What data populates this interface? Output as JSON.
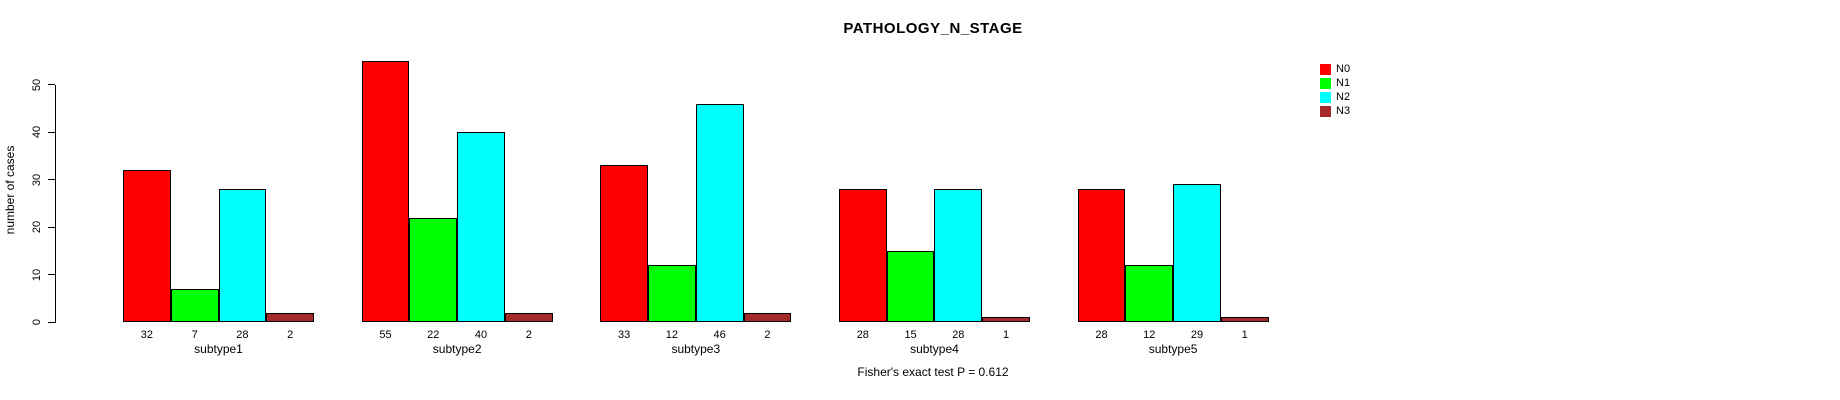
{
  "chart_data": {
    "type": "bar",
    "title": "PATHOLOGY_N_STAGE",
    "xlabel": "",
    "ylabel": "number of cases",
    "annotation": "Fisher's exact test P = 0.612",
    "categories": [
      "subtype1",
      "subtype2",
      "subtype3",
      "subtype4",
      "subtype5"
    ],
    "series": [
      {
        "name": "N0",
        "color": "#ff0000",
        "values": [
          32,
          55,
          33,
          28,
          28
        ]
      },
      {
        "name": "N1",
        "color": "#00ff00",
        "values": [
          7,
          22,
          12,
          15,
          12
        ]
      },
      {
        "name": "N2",
        "color": "#00ffff",
        "values": [
          28,
          40,
          46,
          28,
          29
        ]
      },
      {
        "name": "N3",
        "color": "#a52a2a",
        "values": [
          2,
          2,
          2,
          1,
          1
        ]
      }
    ],
    "ylim": [
      0,
      50
    ],
    "yticks": [
      0,
      10,
      20,
      30,
      40,
      50
    ],
    "bar_value_labels_shown": true,
    "grid": false,
    "legend_position": "top-right",
    "legend_entries": [
      "N0",
      "N1",
      "N2",
      "N3"
    ]
  }
}
